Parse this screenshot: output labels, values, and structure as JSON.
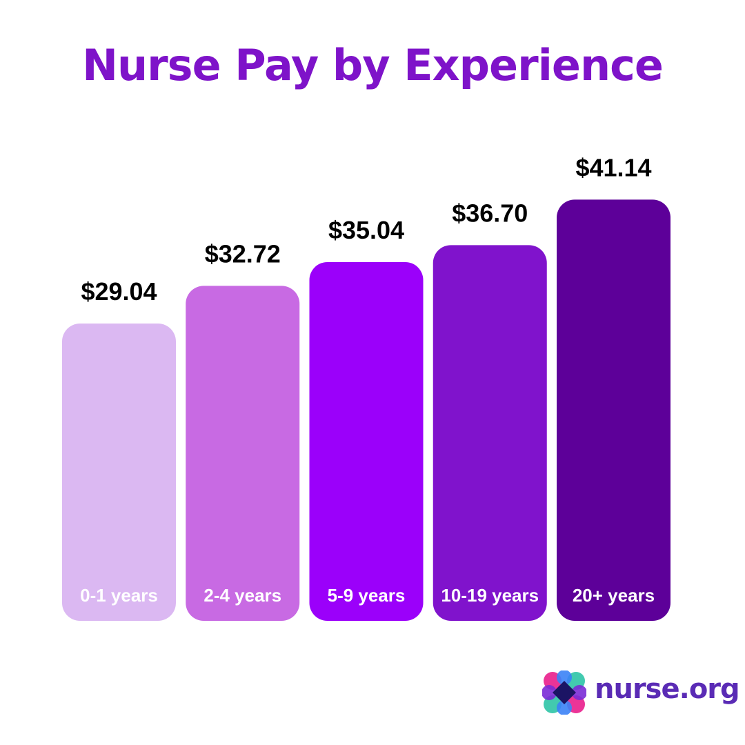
{
  "brand": {
    "name": "nurse.org",
    "colors": {
      "text": "#5a2bb5",
      "mark_pink": "#e91e8c",
      "mark_teal": "#2ec4a6",
      "mark_blue": "#3b82f6",
      "mark_purple": "#7a2bd6",
      "mark_navy": "#1b1464"
    }
  },
  "chart_data": {
    "type": "bar",
    "title": "Nurse Pay by Experience",
    "title_color": "#7e13c9",
    "categories": [
      "0-1 years",
      "2-4 years",
      "5-9 years",
      "10-19 years",
      "20+ years"
    ],
    "values": [
      29.04,
      32.72,
      35.04,
      36.7,
      41.14
    ],
    "value_labels": [
      "$29.04",
      "$32.72",
      "$35.04",
      "$36.70",
      "$41.14"
    ],
    "bar_colors": [
      "#dbb8f2",
      "#c86ae3",
      "#9b00fa",
      "#8013cc",
      "#5d0099"
    ],
    "xlabel": "",
    "ylabel": "",
    "grid": false,
    "legend": "none"
  }
}
